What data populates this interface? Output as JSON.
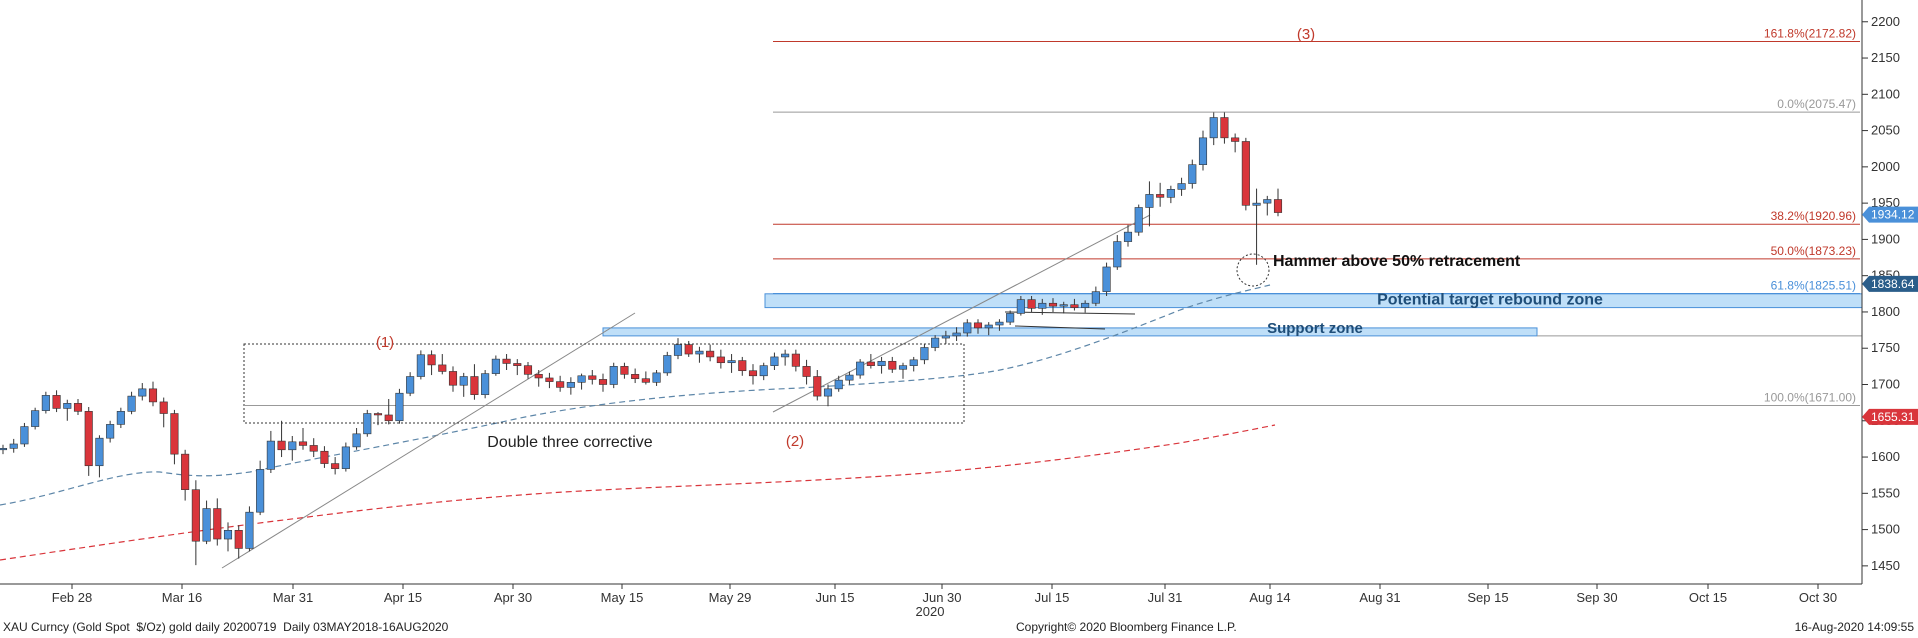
{
  "chart_data": {
    "type": "candlestick",
    "security": "XAU Curncy (Gold Spot  $/Oz) gold daily 20200719  Daily 03MAY2018-16AUG2020",
    "copyright": "Copyright© 2020 Bloomberg Finance L.P.",
    "timestamp": "16-Aug-2020 14:09:55",
    "ylim": [
      1425,
      2230
    ],
    "y_ticks": [
      1450,
      1500,
      1550,
      1600,
      1650,
      1700,
      1750,
      1800,
      1850,
      1900,
      1950,
      2000,
      2050,
      2100,
      2150,
      2200
    ],
    "x_ticks": [
      "Feb 28",
      "Mar 16",
      "Mar 31",
      "Apr 15",
      "Apr 30",
      "May 15",
      "May 29",
      "Jun 15",
      "Jun 30",
      "Jul 15",
      "Jul 31",
      "Aug 14",
      "Aug 31",
      "Sep 15",
      "Sep 30",
      "Oct 15",
      "Oct 30"
    ],
    "year_label": "2020",
    "price_tags": [
      {
        "value": 1934.12,
        "label": "1934.12",
        "color": "#4a90d9"
      },
      {
        "value": 1838.64,
        "label": "1838.64",
        "color": "#2a5d8a"
      },
      {
        "value": 1655.31,
        "label": "1655.31",
        "color": "#d9353b"
      }
    ],
    "fib_levels": [
      {
        "value": 2172.82,
        "label": "161.8%(2172.82)",
        "color": "#c0392b"
      },
      {
        "value": 2075.47,
        "label": "0.0%(2075.47)",
        "color": "#999999"
      },
      {
        "value": 1920.96,
        "label": "38.2%(1920.96)",
        "color": "#c0392b"
      },
      {
        "value": 1873.23,
        "label": "50.0%(1873.23)",
        "color": "#c0392b"
      },
      {
        "value": 1825.51,
        "label": "61.8%(1825.51)",
        "color": "#4a90d9"
      },
      {
        "value": 1671.0,
        "label": "100.0%(1671.00)",
        "color": "#999999"
      }
    ],
    "zones": [
      {
        "label": "Potential target rebound zone",
        "top": 1825,
        "bottom": 1806
      },
      {
        "label": "Support zone",
        "top": 1778,
        "bottom": 1767
      }
    ],
    "annotations": {
      "wave1": "(1)",
      "wave2": "(2)",
      "wave3": "(3)",
      "double_three": "Double three corrective",
      "hammer": "Hammer above 50% retracement"
    },
    "candles": [
      [
        1610,
        1617,
        1604,
        1612
      ],
      [
        1612,
        1625,
        1606,
        1618
      ],
      [
        1618,
        1647,
        1614,
        1642
      ],
      [
        1642,
        1668,
        1638,
        1664
      ],
      [
        1664,
        1690,
        1660,
        1685
      ],
      [
        1685,
        1692,
        1662,
        1667
      ],
      [
        1667,
        1679,
        1650,
        1674
      ],
      [
        1674,
        1680,
        1658,
        1663
      ],
      [
        1663,
        1669,
        1574,
        1588
      ],
      [
        1588,
        1630,
        1572,
        1626
      ],
      [
        1626,
        1650,
        1620,
        1645
      ],
      [
        1645,
        1668,
        1640,
        1663
      ],
      [
        1663,
        1690,
        1659,
        1684
      ],
      [
        1684,
        1702,
        1678,
        1694
      ],
      [
        1694,
        1704,
        1670,
        1676
      ],
      [
        1676,
        1682,
        1641,
        1660
      ],
      [
        1660,
        1665,
        1590,
        1604
      ],
      [
        1604,
        1610,
        1540,
        1555
      ],
      [
        1555,
        1568,
        1451,
        1484
      ],
      [
        1484,
        1540,
        1480,
        1529
      ],
      [
        1529,
        1543,
        1478,
        1487
      ],
      [
        1487,
        1510,
        1470,
        1499
      ],
      [
        1499,
        1506,
        1460,
        1474
      ],
      [
        1474,
        1532,
        1470,
        1524
      ],
      [
        1524,
        1595,
        1520,
        1583
      ],
      [
        1583,
        1636,
        1578,
        1622
      ],
      [
        1622,
        1650,
        1600,
        1610
      ],
      [
        1610,
        1629,
        1595,
        1621
      ],
      [
        1621,
        1640,
        1610,
        1616
      ],
      [
        1616,
        1626,
        1600,
        1608
      ],
      [
        1608,
        1615,
        1585,
        1591
      ],
      [
        1591,
        1600,
        1576,
        1584
      ],
      [
        1584,
        1620,
        1580,
        1614
      ],
      [
        1614,
        1640,
        1610,
        1632
      ],
      [
        1632,
        1665,
        1628,
        1660
      ],
      [
        1660,
        1662,
        1644,
        1658
      ],
      [
        1658,
        1680,
        1645,
        1650
      ],
      [
        1650,
        1694,
        1646,
        1688
      ],
      [
        1688,
        1717,
        1684,
        1711
      ],
      [
        1711,
        1747,
        1707,
        1741
      ],
      [
        1741,
        1747,
        1713,
        1727
      ],
      [
        1727,
        1742,
        1714,
        1718
      ],
      [
        1718,
        1725,
        1690,
        1699
      ],
      [
        1699,
        1716,
        1683,
        1711
      ],
      [
        1711,
        1728,
        1679,
        1686
      ],
      [
        1686,
        1720,
        1681,
        1715
      ],
      [
        1715,
        1740,
        1712,
        1735
      ],
      [
        1735,
        1742,
        1720,
        1729
      ],
      [
        1729,
        1735,
        1713,
        1726
      ],
      [
        1726,
        1731,
        1708,
        1714
      ],
      [
        1714,
        1720,
        1697,
        1709
      ],
      [
        1709,
        1716,
        1695,
        1704
      ],
      [
        1704,
        1712,
        1690,
        1696
      ],
      [
        1696,
        1710,
        1686,
        1703
      ],
      [
        1703,
        1715,
        1693,
        1712
      ],
      [
        1712,
        1720,
        1700,
        1707
      ],
      [
        1707,
        1715,
        1690,
        1700
      ],
      [
        1700,
        1730,
        1695,
        1725
      ],
      [
        1725,
        1730,
        1708,
        1714
      ],
      [
        1714,
        1722,
        1702,
        1708
      ],
      [
        1708,
        1718,
        1700,
        1703
      ],
      [
        1703,
        1720,
        1698,
        1716
      ],
      [
        1716,
        1745,
        1712,
        1740
      ],
      [
        1740,
        1764,
        1735,
        1755
      ],
      [
        1755,
        1760,
        1738,
        1742
      ],
      [
        1742,
        1752,
        1730,
        1746
      ],
      [
        1746,
        1755,
        1732,
        1738
      ],
      [
        1738,
        1748,
        1722,
        1730
      ],
      [
        1730,
        1742,
        1716,
        1733
      ],
      [
        1733,
        1738,
        1712,
        1719
      ],
      [
        1719,
        1728,
        1700,
        1712
      ],
      [
        1712,
        1730,
        1706,
        1726
      ],
      [
        1726,
        1744,
        1720,
        1738
      ],
      [
        1738,
        1748,
        1726,
        1742
      ],
      [
        1742,
        1748,
        1718,
        1725
      ],
      [
        1725,
        1734,
        1700,
        1711
      ],
      [
        1711,
        1720,
        1678,
        1684
      ],
      [
        1684,
        1700,
        1670,
        1694
      ],
      [
        1694,
        1712,
        1690,
        1706
      ],
      [
        1706,
        1718,
        1700,
        1713
      ],
      [
        1713,
        1735,
        1708,
        1731
      ],
      [
        1731,
        1742,
        1722,
        1726
      ],
      [
        1726,
        1738,
        1715,
        1732
      ],
      [
        1732,
        1738,
        1716,
        1721
      ],
      [
        1721,
        1730,
        1708,
        1726
      ],
      [
        1726,
        1738,
        1718,
        1734
      ],
      [
        1734,
        1756,
        1728,
        1751
      ],
      [
        1751,
        1768,
        1746,
        1764
      ],
      [
        1764,
        1774,
        1756,
        1767
      ],
      [
        1767,
        1779,
        1760,
        1771
      ],
      [
        1771,
        1790,
        1766,
        1785
      ],
      [
        1785,
        1790,
        1770,
        1778
      ],
      [
        1778,
        1786,
        1768,
        1782
      ],
      [
        1782,
        1790,
        1774,
        1786
      ],
      [
        1786,
        1802,
        1782,
        1798
      ],
      [
        1798,
        1822,
        1795,
        1817
      ],
      [
        1817,
        1822,
        1800,
        1805
      ],
      [
        1805,
        1818,
        1796,
        1812
      ],
      [
        1812,
        1819,
        1800,
        1808
      ],
      [
        1808,
        1814,
        1798,
        1810
      ],
      [
        1810,
        1818,
        1802,
        1806
      ],
      [
        1806,
        1816,
        1799,
        1812
      ],
      [
        1812,
        1835,
        1808,
        1828
      ],
      [
        1828,
        1868,
        1822,
        1862
      ],
      [
        1862,
        1906,
        1858,
        1897
      ],
      [
        1897,
        1920,
        1890,
        1910
      ],
      [
        1910,
        1948,
        1905,
        1944
      ],
      [
        1944,
        1980,
        1918,
        1962
      ],
      [
        1962,
        1978,
        1945,
        1958
      ],
      [
        1958,
        1974,
        1950,
        1969
      ],
      [
        1969,
        1985,
        1960,
        1977
      ],
      [
        1977,
        2010,
        1970,
        2003
      ],
      [
        2003,
        2050,
        1995,
        2040
      ],
      [
        2040,
        2075,
        2030,
        2068
      ],
      [
        2068,
        2075,
        2032,
        2040
      ],
      [
        2040,
        2046,
        2020,
        2035
      ],
      [
        2035,
        2040,
        1940,
        1947
      ],
      [
        1947,
        1970,
        1865,
        1950
      ],
      [
        1950,
        1960,
        1933,
        1955
      ],
      [
        1955,
        1970,
        1932,
        1937
      ]
    ]
  }
}
